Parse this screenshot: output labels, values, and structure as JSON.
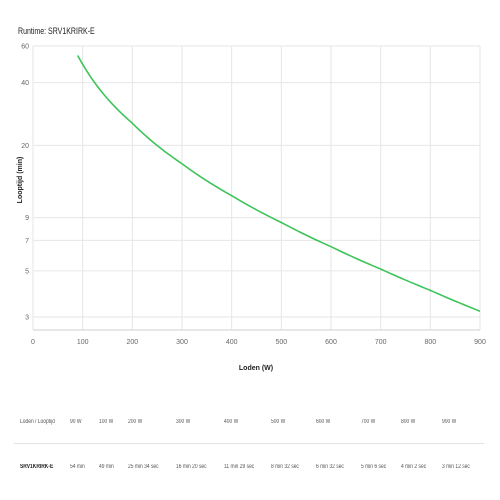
{
  "title": "Runtime: SRV1KRIRK-E",
  "chart_data": {
    "type": "line",
    "title": "Runtime: SRV1KRIRK-E",
    "xlabel": "Loden (W)",
    "ylabel": "Looptijd (min)",
    "xlim": [
      0,
      900
    ],
    "ylim": [
      2.6,
      60
    ],
    "yscale": "log",
    "grid": true,
    "color": "#3cc45a",
    "x_ticks": [
      "0",
      "100",
      "200",
      "300",
      "400",
      "500",
      "600",
      "700",
      "800",
      "900"
    ],
    "y_ticks": [
      {
        "value": 60,
        "label": "60"
      },
      {
        "value": 40,
        "label": "40"
      },
      {
        "value": 20,
        "label": "20"
      },
      {
        "value": 9,
        "label": "9"
      },
      {
        "value": 7,
        "label": "7"
      },
      {
        "value": 5,
        "label": "5"
      },
      {
        "value": 3,
        "label": "3"
      }
    ],
    "series": [
      {
        "x": [
          90,
          100,
          200,
          300,
          400,
          500,
          600,
          700,
          800,
          900
        ],
        "y": [
          54,
          49,
          25.57,
          16.33,
          11.48,
          8.53,
          6.53,
          5.1,
          4.03,
          3.2
        ]
      }
    ]
  },
  "table": {
    "header_label": "Loden / Looptijd",
    "loads": [
      "90 W",
      "100 W",
      "200 W",
      "300 W",
      "400 W",
      "500 W",
      "600 W",
      "700 W",
      "800 W",
      "900 W"
    ],
    "model": "SRV1KRIRK-E",
    "runtimes": [
      "54 min",
      "49 min",
      "25 min 34 sec",
      "16 min 20 sec",
      "11 min 29 sec",
      "8 min 32 sec",
      "6 min 32 sec",
      "5 min 6 sec",
      "4 min 2 sec",
      "3 min 12 sec"
    ]
  }
}
